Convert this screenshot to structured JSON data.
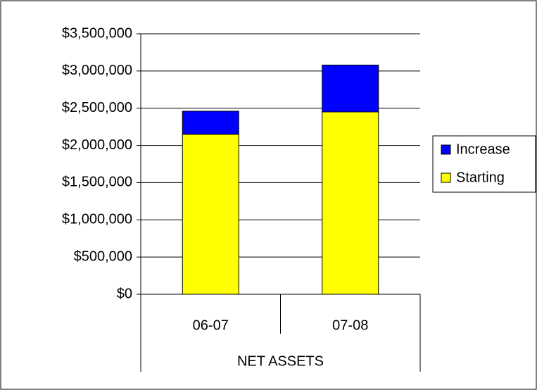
{
  "chart_data": {
    "type": "stacked_bar",
    "categories": [
      "06-07",
      "07-08"
    ],
    "category_group": "NET ASSETS",
    "series": [
      {
        "name": "Starting",
        "color": "#ffff00",
        "values": [
          2150000,
          2450000
        ]
      },
      {
        "name": "Increase",
        "color": "#0000ff",
        "values": [
          310000,
          630000
        ]
      }
    ],
    "ylim": [
      0,
      3500000
    ],
    "yticks": [
      {
        "value": 0,
        "label": "$0"
      },
      {
        "value": 500000,
        "label": "$500,000"
      },
      {
        "value": 1000000,
        "label": "$1,000,000"
      },
      {
        "value": 1500000,
        "label": "$1,500,000"
      },
      {
        "value": 2000000,
        "label": "$2,000,000"
      },
      {
        "value": 2500000,
        "label": "$2,500,000"
      },
      {
        "value": 3000000,
        "label": "$3,000,000"
      },
      {
        "value": 3500000,
        "label": "$3,500,000"
      }
    ],
    "grid": true,
    "legend": "right"
  }
}
